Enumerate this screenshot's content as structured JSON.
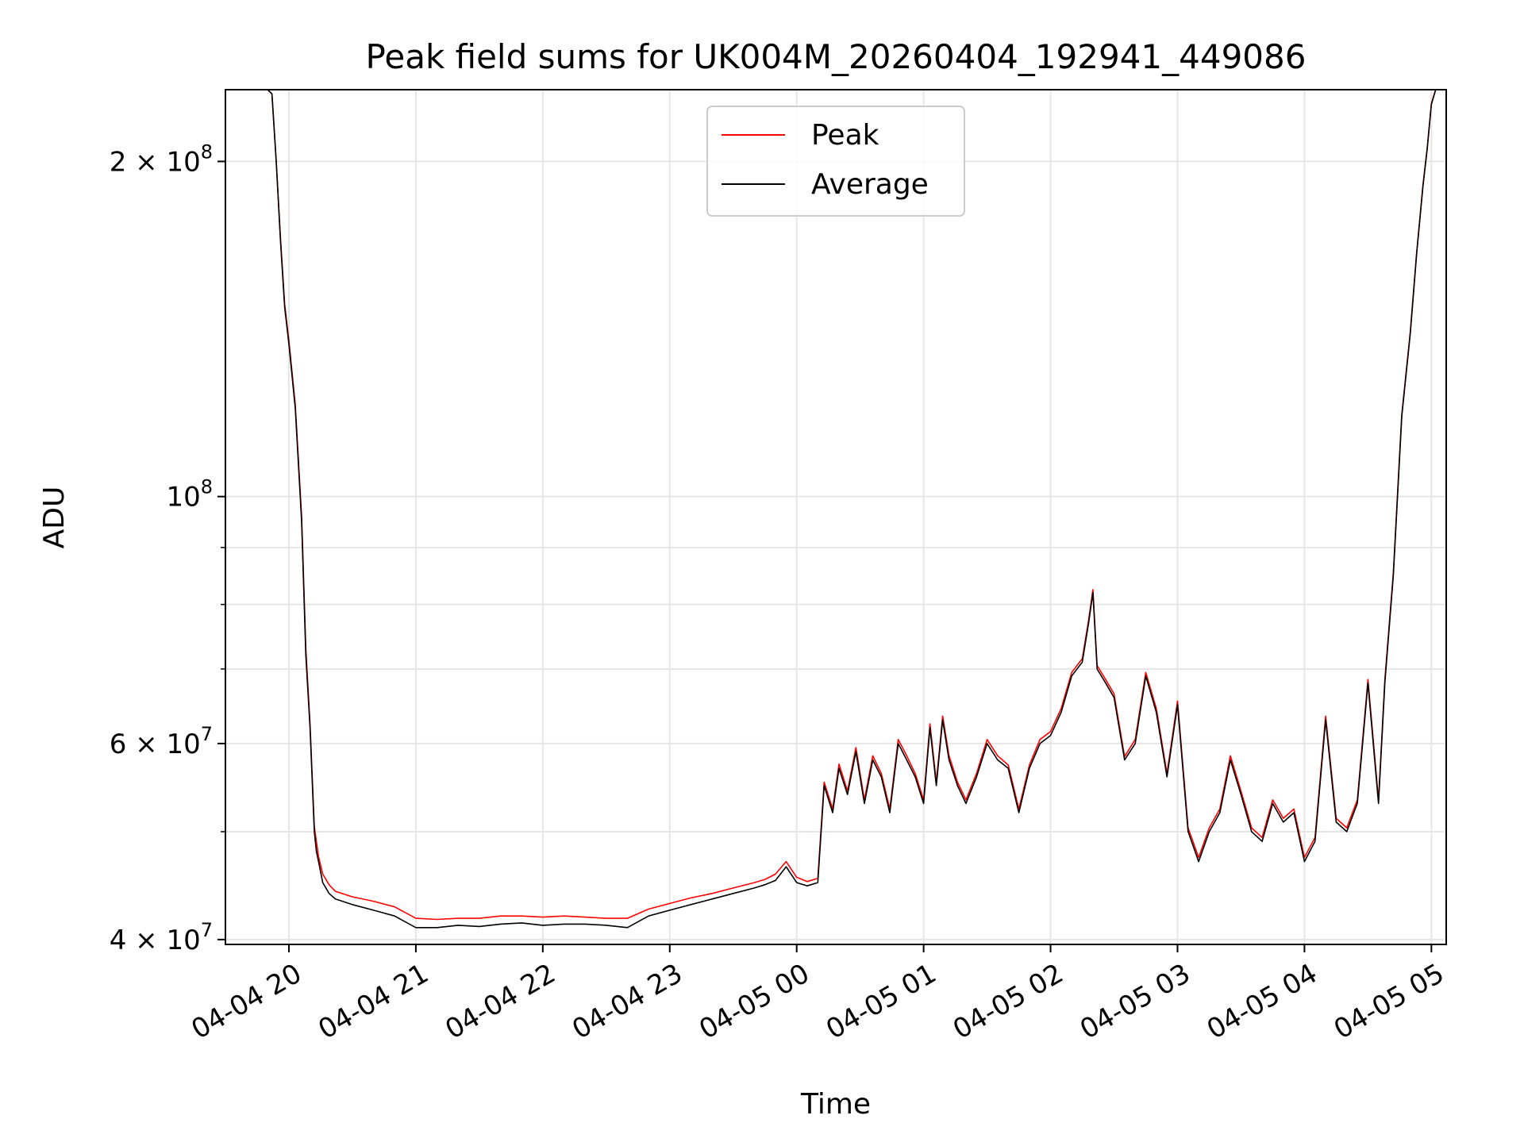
{
  "chart_data": {
    "type": "line",
    "title": "Peak field sums for UK004M_20260404_192941_449086",
    "xlabel": "Time",
    "ylabel": "ADU",
    "yscale": "log",
    "ylim": [
      39600000,
      232000000
    ],
    "xlim": [
      "2026-04-04 19:30",
      "2026-04-05 05:07"
    ],
    "xticks": [
      {
        "t": "2026-04-04 20:00",
        "label": "04-04 20"
      },
      {
        "t": "2026-04-04 21:00",
        "label": "04-04 21"
      },
      {
        "t": "2026-04-04 22:00",
        "label": "04-04 22"
      },
      {
        "t": "2026-04-04 23:00",
        "label": "04-04 23"
      },
      {
        "t": "2026-04-05 00:00",
        "label": "04-05 00"
      },
      {
        "t": "2026-04-05 01:00",
        "label": "04-05 01"
      },
      {
        "t": "2026-04-05 02:00",
        "label": "04-05 02"
      },
      {
        "t": "2026-04-05 03:00",
        "label": "04-05 03"
      },
      {
        "t": "2026-04-05 04:00",
        "label": "04-05 04"
      },
      {
        "t": "2026-04-05 05:00",
        "label": "04-05 05"
      }
    ],
    "yticks_major": [
      {
        "value": 40000000,
        "mant": "4",
        "exp": "7"
      },
      {
        "value": 60000000,
        "mant": "6",
        "exp": "7"
      },
      {
        "value": 100000000,
        "mant": "",
        "exp": "8"
      },
      {
        "value": 200000000,
        "mant": "2",
        "exp": "8"
      }
    ],
    "yticks_minor": [
      50000000,
      70000000,
      80000000,
      90000000
    ],
    "grid": true,
    "legend": "top-center",
    "series": [
      {
        "name": "Peak",
        "color": "#ff0000"
      },
      {
        "name": "Average",
        "color": "#000000"
      }
    ],
    "x": [
      "2026-04-04 19:30",
      "2026-04-04 19:50",
      "2026-04-04 19:52",
      "2026-04-04 19:54",
      "2026-04-04 19:56",
      "2026-04-04 19:58",
      "2026-04-04 20:00",
      "2026-04-04 20:03",
      "2026-04-04 20:06",
      "2026-04-04 20:08",
      "2026-04-04 20:10",
      "2026-04-04 20:12",
      "2026-04-04 20:13",
      "2026-04-04 20:14",
      "2026-04-04 20:16",
      "2026-04-04 20:19",
      "2026-04-04 20:22",
      "2026-04-04 20:30",
      "2026-04-04 20:40",
      "2026-04-04 20:50",
      "2026-04-04 21:00",
      "2026-04-04 21:10",
      "2026-04-04 21:20",
      "2026-04-04 21:30",
      "2026-04-04 21:40",
      "2026-04-04 21:50",
      "2026-04-04 22:00",
      "2026-04-04 22:10",
      "2026-04-04 22:20",
      "2026-04-04 22:30",
      "2026-04-04 22:40",
      "2026-04-04 22:50",
      "2026-04-04 23:00",
      "2026-04-04 23:10",
      "2026-04-04 23:20",
      "2026-04-04 23:30",
      "2026-04-04 23:40",
      "2026-04-04 23:45",
      "2026-04-04 23:50",
      "2026-04-04 23:55",
      "2026-04-05 00:00",
      "2026-04-05 00:05",
      "2026-04-05 00:10",
      "2026-04-05 00:13",
      "2026-04-05 00:17",
      "2026-04-05 00:20",
      "2026-04-05 00:24",
      "2026-04-05 00:28",
      "2026-04-05 00:32",
      "2026-04-05 00:36",
      "2026-04-05 00:40",
      "2026-04-05 00:44",
      "2026-04-05 00:48",
      "2026-04-05 00:52",
      "2026-04-05 00:56",
      "2026-04-05 01:00",
      "2026-04-05 01:03",
      "2026-04-05 01:06",
      "2026-04-05 01:09",
      "2026-04-05 01:12",
      "2026-04-05 01:16",
      "2026-04-05 01:20",
      "2026-04-05 01:25",
      "2026-04-05 01:30",
      "2026-04-05 01:35",
      "2026-04-05 01:40",
      "2026-04-05 01:45",
      "2026-04-05 01:50",
      "2026-04-05 01:55",
      "2026-04-05 02:00",
      "2026-04-05 02:05",
      "2026-04-05 02:10",
      "2026-04-05 02:15",
      "2026-04-05 02:18",
      "2026-04-05 02:20",
      "2026-04-05 02:22",
      "2026-04-05 02:26",
      "2026-04-05 02:30",
      "2026-04-05 02:35",
      "2026-04-05 02:40",
      "2026-04-05 02:45",
      "2026-04-05 02:50",
      "2026-04-05 02:55",
      "2026-04-05 03:00",
      "2026-04-05 03:05",
      "2026-04-05 03:10",
      "2026-04-05 03:15",
      "2026-04-05 03:20",
      "2026-04-05 03:25",
      "2026-04-05 03:30",
      "2026-04-05 03:35",
      "2026-04-05 03:40",
      "2026-04-05 03:45",
      "2026-04-05 03:50",
      "2026-04-05 03:55",
      "2026-04-05 04:00",
      "2026-04-05 04:05",
      "2026-04-05 04:10",
      "2026-04-05 04:15",
      "2026-04-05 04:20",
      "2026-04-05 04:25",
      "2026-04-05 04:30",
      "2026-04-05 04:35",
      "2026-04-05 04:38",
      "2026-04-05 04:42",
      "2026-04-05 04:46",
      "2026-04-05 04:50",
      "2026-04-05 04:53",
      "2026-04-05 04:56",
      "2026-04-05 04:58",
      "2026-04-05 05:00",
      "2026-04-05 05:02",
      "2026-04-05 05:07"
    ],
    "average": [
      232000000,
      232000000,
      230000000,
      200000000,
      170000000,
      148000000,
      137000000,
      120000000,
      95000000,
      72000000,
      62000000,
      50000000,
      48000000,
      47000000,
      45000000,
      44000000,
      43500000,
      43000000,
      42500000,
      42000000,
      41000000,
      41000000,
      41200000,
      41100000,
      41300000,
      41400000,
      41200000,
      41300000,
      41300000,
      41200000,
      41000000,
      42000000,
      42500000,
      43000000,
      43500000,
      44000000,
      44500000,
      44800000,
      45200000,
      46500000,
      45000000,
      44700000,
      45000000,
      55000000,
      52000000,
      57000000,
      54000000,
      59000000,
      53000000,
      58000000,
      56000000,
      52000000,
      60000000,
      58000000,
      56000000,
      53000000,
      62000000,
      55000000,
      63000000,
      58000000,
      55000000,
      53000000,
      56000000,
      60000000,
      58000000,
      57000000,
      52000000,
      57000000,
      60000000,
      61000000,
      64000000,
      69000000,
      71000000,
      77000000,
      82000000,
      70000000,
      68000000,
      66000000,
      58000000,
      60000000,
      69000000,
      64000000,
      56000000,
      65000000,
      50000000,
      47000000,
      50000000,
      52000000,
      58000000,
      54000000,
      50000000,
      49000000,
      53000000,
      51000000,
      52000000,
      47000000,
      49000000,
      63000000,
      51000000,
      50000000,
      53000000,
      68000000,
      53000000,
      68000000,
      85000000,
      118000000,
      140000000,
      165000000,
      190000000,
      205000000,
      225000000,
      232000000
    ],
    "peak": [
      232000000,
      232000000,
      230000000,
      200000000,
      171000000,
      149000000,
      138000000,
      121000000,
      96000000,
      73000000,
      62500000,
      50500000,
      49000000,
      47500000,
      45800000,
      44800000,
      44200000,
      43700000,
      43300000,
      42800000,
      41800000,
      41700000,
      41800000,
      41800000,
      42000000,
      42000000,
      41900000,
      42000000,
      41900000,
      41800000,
      41800000,
      42600000,
      43100000,
      43600000,
      44000000,
      44500000,
      45000000,
      45300000,
      45800000,
      47000000,
      45500000,
      45100000,
      45400000,
      55400000,
      52400000,
      57500000,
      54400000,
      59500000,
      53400000,
      58500000,
      56400000,
      52400000,
      60500000,
      58500000,
      56400000,
      53400000,
      62500000,
      55400000,
      63500000,
      58500000,
      55400000,
      53400000,
      56400000,
      60500000,
      58500000,
      57400000,
      52400000,
      57400000,
      60500000,
      61500000,
      64500000,
      69500000,
      71500000,
      77500000,
      82500000,
      70500000,
      68500000,
      66500000,
      58400000,
      60500000,
      69500000,
      64500000,
      56400000,
      65500000,
      50400000,
      47400000,
      50400000,
      52400000,
      58500000,
      54400000,
      50400000,
      49400000,
      53400000,
      51400000,
      52400000,
      47400000,
      49400000,
      63500000,
      51400000,
      50400000,
      53400000,
      68500000,
      53400000,
      68500000,
      85500000,
      118500000,
      140500000,
      165500000,
      190500000,
      205500000,
      225500000,
      232000000
    ]
  }
}
